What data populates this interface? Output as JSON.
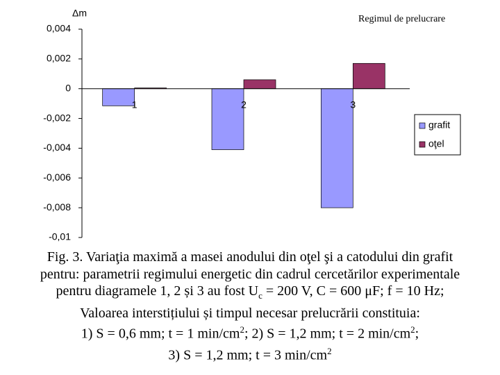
{
  "chart_data": {
    "type": "bar",
    "y_label": "Δm",
    "x_label": "Regimul de prelucrare",
    "categories": [
      "1",
      "2",
      "3"
    ],
    "series": [
      {
        "name": "grafit",
        "color": "#9999ff",
        "values": [
          -0.00115,
          -0.0041,
          -0.008
        ]
      },
      {
        "name": "oţel",
        "color": "#993366",
        "values": [
          5e-05,
          0.0006,
          0.0017
        ]
      }
    ],
    "ylim": [
      -0.01,
      0.004
    ],
    "yticks": [
      {
        "value": 0.004,
        "label": "0,004"
      },
      {
        "value": 0.002,
        "label": "0,002"
      },
      0,
      {
        "value": -0.002,
        "label": "-0,002"
      },
      {
        "value": -0.004,
        "label": "-0,004"
      },
      {
        "value": -0.006,
        "label": "-0,006"
      },
      {
        "value": -0.008,
        "label": "-0,008"
      },
      {
        "value": -0.01,
        "label": "-0,01"
      }
    ],
    "legend": "right"
  },
  "caption": {
    "line1": "Fig. 3. Variaţia maximă a masei anodului din oţel şi a catodului din grafit",
    "line2": "pentru: parametrii regimului energetic din cadrul cercetărilor experimentale",
    "line3": {
      "before": "pentru diagramele 1, 2 și 3 au fost U",
      "sub": "c",
      "after": " = 200 V, C = 600 μF; f = 10 Hz;"
    },
    "line4": "Valoarea interstițiului și timpul necesar prelucrării constituia:",
    "line5": {
      "a": "1) S = 0,6 mm; t = 1 min/cm",
      "sup1": "2",
      "b": "; 2) S = 1,2 mm; t = 2 min/cm",
      "sup2": "2",
      "c": ";"
    },
    "line6": {
      "a": "3) S = 1,2 mm; t = 3 min/cm",
      "sup": "2"
    }
  }
}
